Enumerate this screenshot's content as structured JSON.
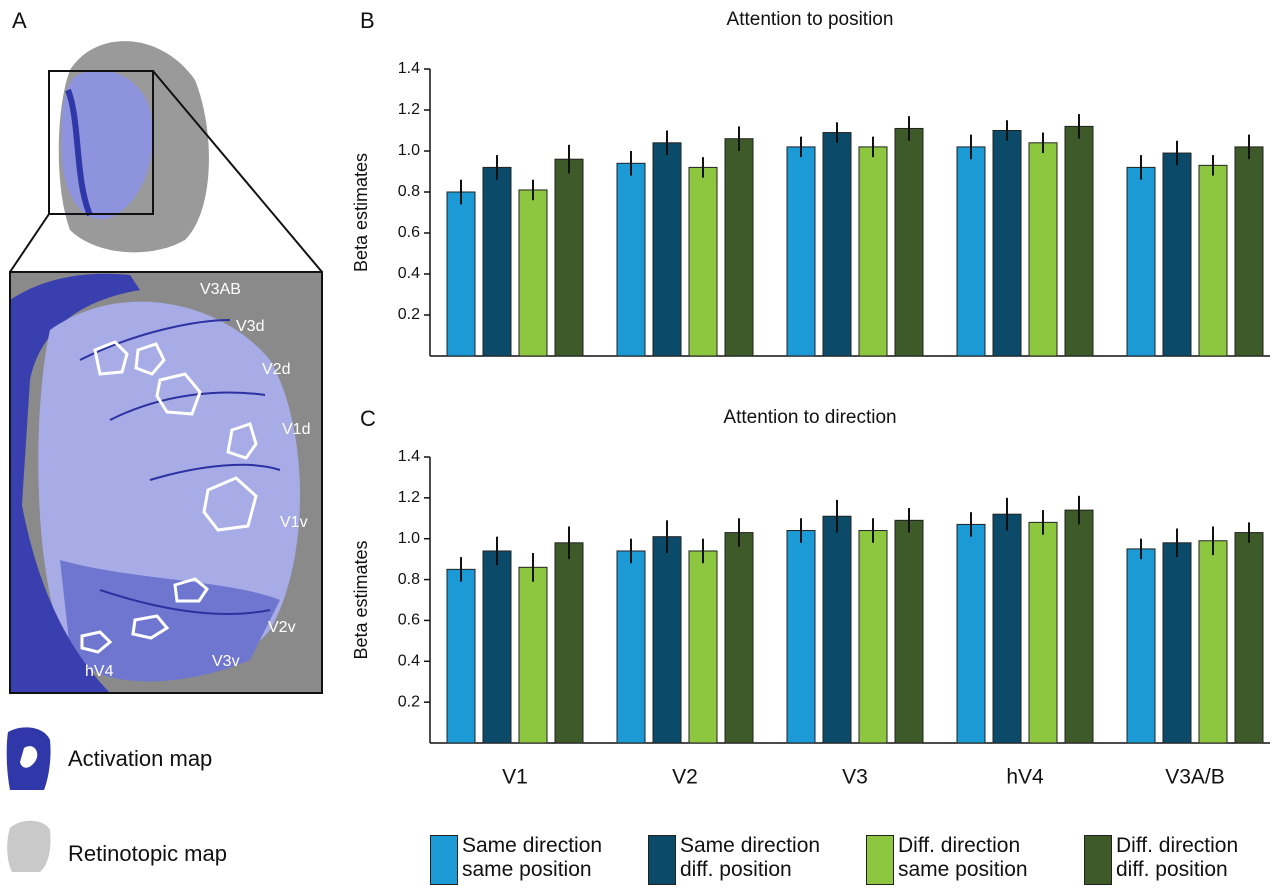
{
  "panel_a": {
    "label": "A",
    "areas": [
      "V3AB",
      "V3d",
      "V2d",
      "V1d",
      "V1v",
      "V2v",
      "V3v",
      "hV4"
    ],
    "legend": [
      "Activation map",
      "Retinotopic map"
    ]
  },
  "chart_data": [
    {
      "type": "bar",
      "panel": "B",
      "title": "Attention to position",
      "y_label": "Beta estimates",
      "ylim": [
        0,
        1.4
      ],
      "yticks": [
        0.2,
        0.4,
        0.6,
        {
          "value": 0.8,
          "label": "0.8"
        },
        {
          "value": 1,
          "label": "1.0"
        },
        1.2,
        1.4
      ],
      "series": [
        {
          "color": "#1b9ad6",
          "values": [
            0.8,
            0.94,
            1.02,
            1.02,
            0.92
          ],
          "errors": [
            0.06,
            0.06,
            0.05,
            0.06,
            0.06
          ]
        },
        {
          "color": "#0c4a6a",
          "values": [
            0.92,
            1.04,
            1.09,
            1.1,
            0.99
          ],
          "errors": [
            0.06,
            0.06,
            0.05,
            0.05,
            0.06
          ]
        },
        {
          "color": "#8dc63f",
          "values": [
            0.81,
            0.92,
            1.02,
            1.04,
            0.93
          ],
          "errors": [
            0.05,
            0.05,
            0.05,
            0.05,
            0.05
          ]
        },
        {
          "color": "#3d5a28",
          "values": [
            0.96,
            1.06,
            1.11,
            1.12,
            1.02
          ],
          "errors": [
            0.07,
            0.06,
            0.06,
            0.06,
            0.06
          ]
        }
      ]
    },
    {
      "type": "bar",
      "panel": "C",
      "title": "Attention to direction",
      "y_label": "Beta estimates",
      "categories": [
        "V1",
        "V2",
        "V3",
        "hV4",
        "V3A/B"
      ],
      "ylim": [
        0,
        1.4
      ],
      "yticks": [
        0.2,
        0.4,
        0.6,
        {
          "value": 0.8,
          "label": "0.8"
        },
        {
          "value": 1,
          "label": "1.0"
        },
        1.2,
        1.4
      ],
      "series": [
        {
          "name": "Same direction\nsame position",
          "color": "#1b9ad6",
          "values": [
            0.85,
            0.94,
            1.04,
            1.07,
            0.95
          ],
          "errors": [
            0.06,
            0.06,
            0.06,
            0.06,
            0.05
          ]
        },
        {
          "name": "Same direction\ndiff. position",
          "color": "#0c4a6a",
          "values": [
            0.94,
            1.01,
            1.11,
            1.12,
            0.98
          ],
          "errors": [
            0.07,
            0.08,
            0.08,
            0.08,
            0.07
          ]
        },
        {
          "name": "Diff. direction\nsame position",
          "color": "#8dc63f",
          "values": [
            0.86,
            0.94,
            1.04,
            1.08,
            0.99
          ],
          "errors": [
            0.07,
            0.06,
            0.06,
            0.06,
            0.07
          ]
        },
        {
          "name": "Diff. direction\ndiff. position",
          "color": "#3d5a28",
          "values": [
            0.98,
            1.03,
            1.09,
            1.14,
            1.03
          ],
          "errors": [
            0.08,
            0.07,
            0.06,
            0.07,
            0.05
          ]
        }
      ]
    }
  ]
}
